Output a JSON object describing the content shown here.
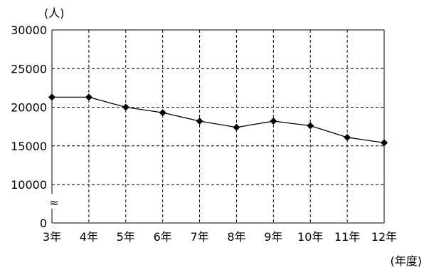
{
  "chart_data": {
    "type": "line",
    "x_unit_label": "(年度)",
    "y_unit_label": "(人)",
    "categories": [
      "3年",
      "4年",
      "5年",
      "6年",
      "7年",
      "8年",
      "9年",
      "10年",
      "11年",
      "12年"
    ],
    "values": [
      21300,
      21300,
      20000,
      19300,
      18200,
      17400,
      18200,
      17600,
      16100,
      15400
    ],
    "y_ticks": [
      "0",
      "10000",
      "15000",
      "20000",
      "25000",
      "30000"
    ],
    "y_axis_break": "≈",
    "ylim": [
      10000,
      30000
    ],
    "grid": true,
    "marker": "diamond",
    "line_color": "#000000"
  }
}
